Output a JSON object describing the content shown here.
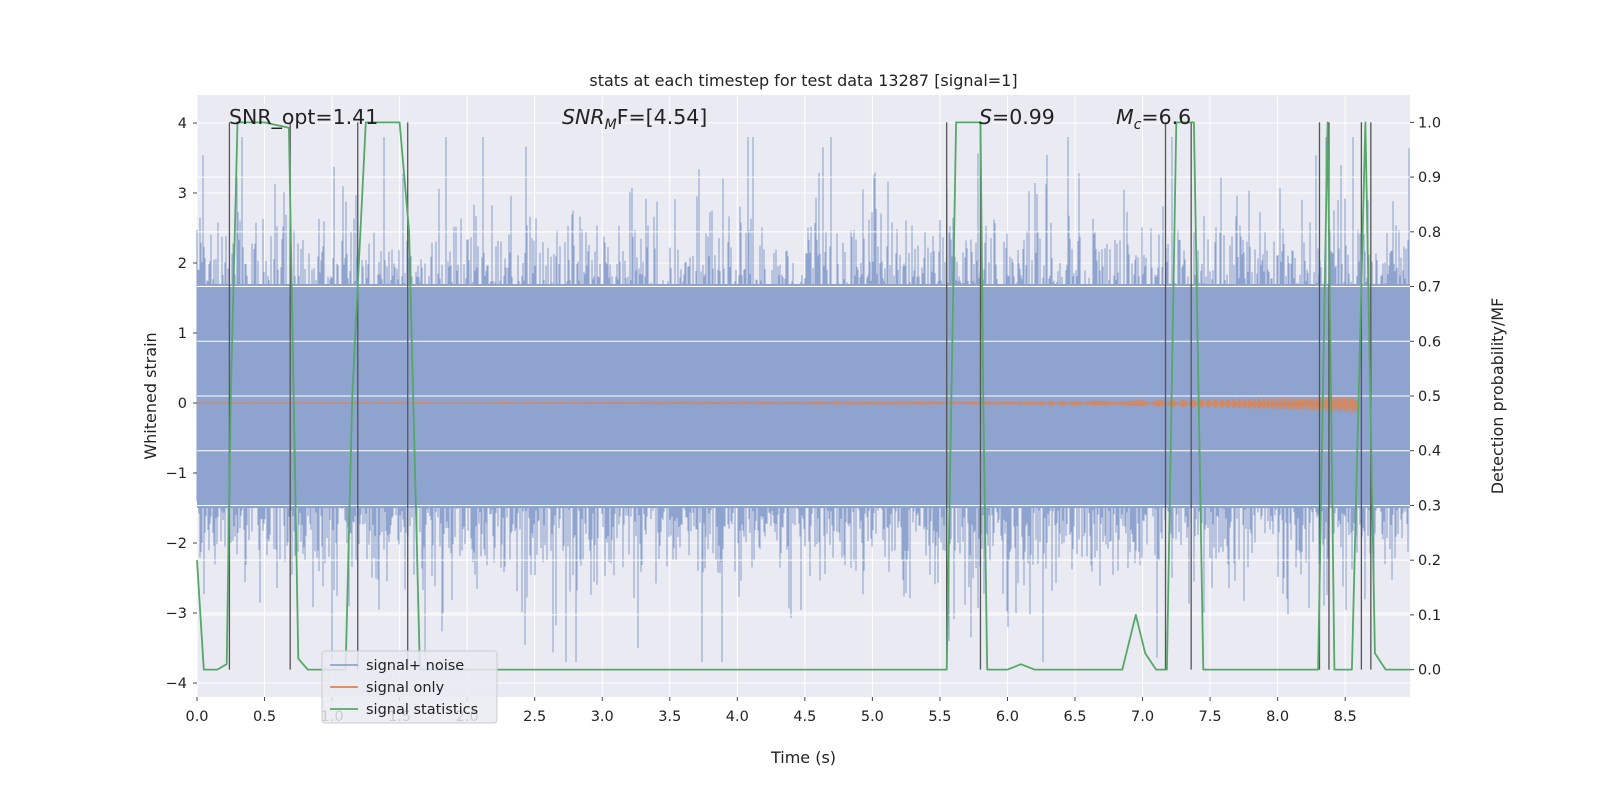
{
  "chart_data": {
    "type": "line",
    "title": "stats at each timestep for test data 13287 [signal=1]",
    "xlabel": "Time (s)",
    "ylabel": "Whitened strain",
    "ylabel_right": "Detection probability/MF",
    "xlim": [
      0.0,
      8.98
    ],
    "ylim": [
      -4.2,
      4.4
    ],
    "ylim_right": [
      -0.05,
      1.05
    ],
    "x_ticks": [
      0.0,
      0.5,
      1.0,
      1.5,
      2.0,
      2.5,
      3.0,
      3.5,
      4.0,
      4.5,
      5.0,
      5.5,
      6.0,
      6.5,
      7.0,
      7.5,
      8.0,
      8.5
    ],
    "x_tick_labels": [
      "0.0",
      "0.5",
      "1.0",
      "1.5",
      "2.0",
      "2.5",
      "3.0",
      "3.5",
      "4.0",
      "4.5",
      "5.0",
      "5.5",
      "6.0",
      "6.5",
      "7.0",
      "7.5",
      "8.0",
      "8.5"
    ],
    "y_ticks": [
      4,
      3,
      2,
      1,
      0,
      -1,
      -2,
      -3,
      -4
    ],
    "y_tick_labels": [
      "4",
      "3",
      "2",
      "1",
      "0",
      "−1",
      "−2",
      "−3",
      "−4"
    ],
    "y_ticks_right": [
      1.0,
      0.9,
      0.8,
      0.7,
      0.6,
      0.5,
      0.4,
      0.3,
      0.2,
      0.1,
      0.0
    ],
    "y_tick_labels_right": [
      "1.0",
      "0.9",
      "0.8",
      "0.7",
      "0.6",
      "0.5",
      "0.4",
      "0.3",
      "0.2",
      "0.1",
      "0.0"
    ],
    "grid": true,
    "legend_placement": "lower-left",
    "annotations": {
      "snr_opt": "SNR_opt=1.41",
      "snr_mf_base": "SNR",
      "snr_mf_sub": "M",
      "snr_mf_rest": "F=[4.54]",
      "s_base": "S",
      "s_rest": "=0.99",
      "mc_base": "M",
      "mc_sub": "c",
      "mc_rest": "=6.6"
    },
    "series": [
      {
        "name": "signal+ noise",
        "color": "#8fa3cf",
        "style": "dense noise",
        "typical_range": [
          -1.5,
          1.7
        ],
        "envelope_range": [
          -3.7,
          3.8
        ]
      },
      {
        "name": "signal only",
        "color": "#dd8452",
        "style": "chirp",
        "x_range": [
          0.0,
          8.6
        ],
        "final_amplitude": 0.12
      },
      {
        "name": "signal statistics",
        "color": "#55a868",
        "axis": "right",
        "x": [
          0.0,
          0.05,
          0.15,
          0.22,
          0.25,
          0.3,
          0.5,
          0.68,
          0.75,
          0.82,
          0.9,
          1.1,
          1.15,
          1.25,
          1.5,
          1.57,
          1.65,
          1.72,
          1.8,
          5.0,
          5.55,
          5.62,
          5.8,
          5.82,
          5.85,
          6.0,
          6.1,
          6.2,
          6.5,
          6.85,
          6.95,
          7.02,
          7.1,
          7.18,
          7.25,
          7.38,
          7.45,
          7.52,
          8.3,
          8.37,
          8.42,
          8.55,
          8.65,
          8.72,
          8.8,
          8.98
        ],
        "values": [
          0.2,
          0.0,
          0.0,
          0.01,
          0.5,
          1.0,
          1.0,
          0.99,
          0.02,
          0.0,
          0.0,
          0.0,
          0.5,
          1.0,
          1.0,
          0.8,
          0.0,
          0.0,
          0.0,
          0.0,
          0.0,
          1.0,
          1.0,
          0.5,
          0.0,
          0.0,
          0.01,
          0.0,
          0.0,
          0.0,
          0.1,
          0.03,
          0.0,
          0.0,
          1.0,
          1.0,
          0.0,
          0.0,
          0.0,
          1.0,
          0.0,
          0.0,
          1.0,
          0.03,
          0.0,
          0.0
        ]
      }
    ],
    "vertical_markers": {
      "color": "#555555",
      "x": [
        0.24,
        0.69,
        1.19,
        1.56,
        5.55,
        5.8,
        7.17,
        7.36,
        8.31,
        8.38,
        8.62,
        8.69
      ]
    },
    "colors": {
      "plot_background": "#eaeaf2",
      "grid": "#ffffff"
    }
  }
}
